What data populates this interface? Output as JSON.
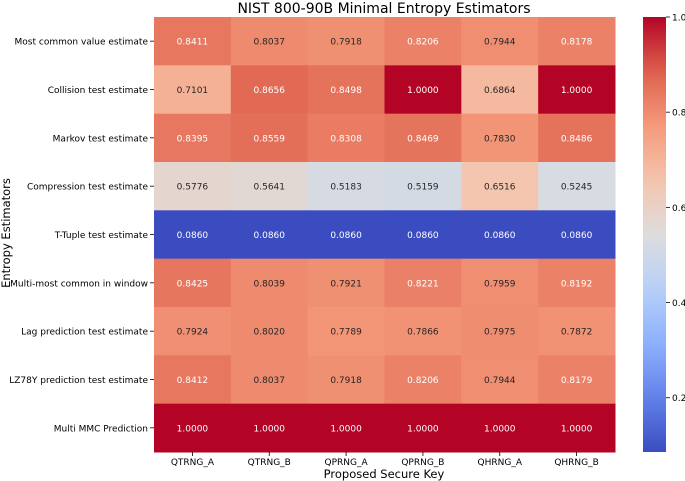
{
  "chart_data": {
    "type": "heatmap",
    "title": "NIST 800-90B Minimal Entropy Estimators",
    "xlabel": "Proposed Secure Key",
    "ylabel": "Entropy Estimators",
    "columns": [
      "QTRNG_A",
      "QTRNG_B",
      "QPRNG_A",
      "QPRNG_B",
      "QHRNG_A",
      "QHRNG_B"
    ],
    "rows": [
      "Most common value estimate",
      "Collision test estimate",
      "Markov test estimate",
      "Compression test estimate",
      "T-Tuple test estimate",
      "Multi-most common in window",
      "Lag prediction test estimate",
      "LZ78Y prediction test estimate",
      "Multi MMC Prediction"
    ],
    "values": [
      [
        0.8411,
        0.8037,
        0.7918,
        0.8206,
        0.7944,
        0.8178
      ],
      [
        0.7101,
        0.8656,
        0.8498,
        1.0,
        0.6864,
        1.0
      ],
      [
        0.8395,
        0.8559,
        0.8308,
        0.8469,
        0.783,
        0.8486
      ],
      [
        0.5776,
        0.5641,
        0.5183,
        0.5159,
        0.6516,
        0.5245
      ],
      [
        0.086,
        0.086,
        0.086,
        0.086,
        0.086,
        0.086
      ],
      [
        0.8425,
        0.8039,
        0.7921,
        0.8221,
        0.7959,
        0.8192
      ],
      [
        0.7924,
        0.802,
        0.7789,
        0.7866,
        0.7975,
        0.7872
      ],
      [
        0.8412,
        0.8037,
        0.7918,
        0.8206,
        0.7944,
        0.8179
      ],
      [
        1.0,
        1.0,
        1.0,
        1.0,
        1.0,
        1.0
      ]
    ],
    "colormap": "coolwarm",
    "vmin": 0.086,
    "vmax": 1.0,
    "colorbar_ticks": [
      0.2,
      0.4,
      0.6,
      0.8,
      1.0
    ]
  }
}
